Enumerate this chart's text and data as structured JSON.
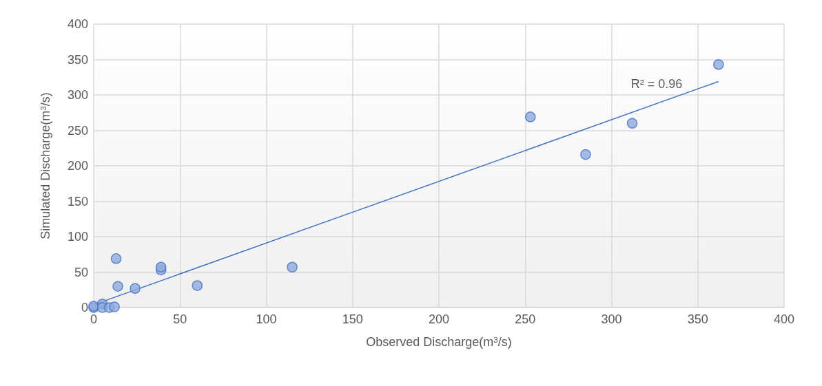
{
  "chart_data": {
    "type": "scatter",
    "xlabel": "Observed Discharge(m$^{3}$/s)",
    "ylabel": "Simulated Discharge(m$^{3}$/s)",
    "series": [
      {
        "color": "#8faadc",
        "marker": "circle",
        "x": [
          0,
          0,
          5,
          5,
          9,
          12,
          13,
          14,
          24,
          39,
          39,
          60,
          115,
          253,
          285,
          312,
          362
        ],
        "values": [
          0,
          2,
          5,
          0,
          0,
          1,
          69,
          30,
          27,
          53,
          57,
          31,
          57,
          269,
          216,
          260,
          343
        ]
      },
      {
        "type": "line",
        "color": "#4472c4",
        "marker": "none",
        "x": [
          0,
          362
        ],
        "values": [
          4,
          319
        ]
      }
    ],
    "xlim": [
      0,
      400
    ],
    "xticks": [
      0,
      50,
      100,
      150,
      200,
      250,
      300,
      350,
      400
    ],
    "ylim": [
      0,
      400
    ],
    "yticks": [
      0,
      50,
      100,
      150,
      200,
      250,
      300,
      350,
      400
    ],
    "grid": true,
    "line_style": "solid",
    "annotations": [
      "R² = 0.96"
    ]
  }
}
